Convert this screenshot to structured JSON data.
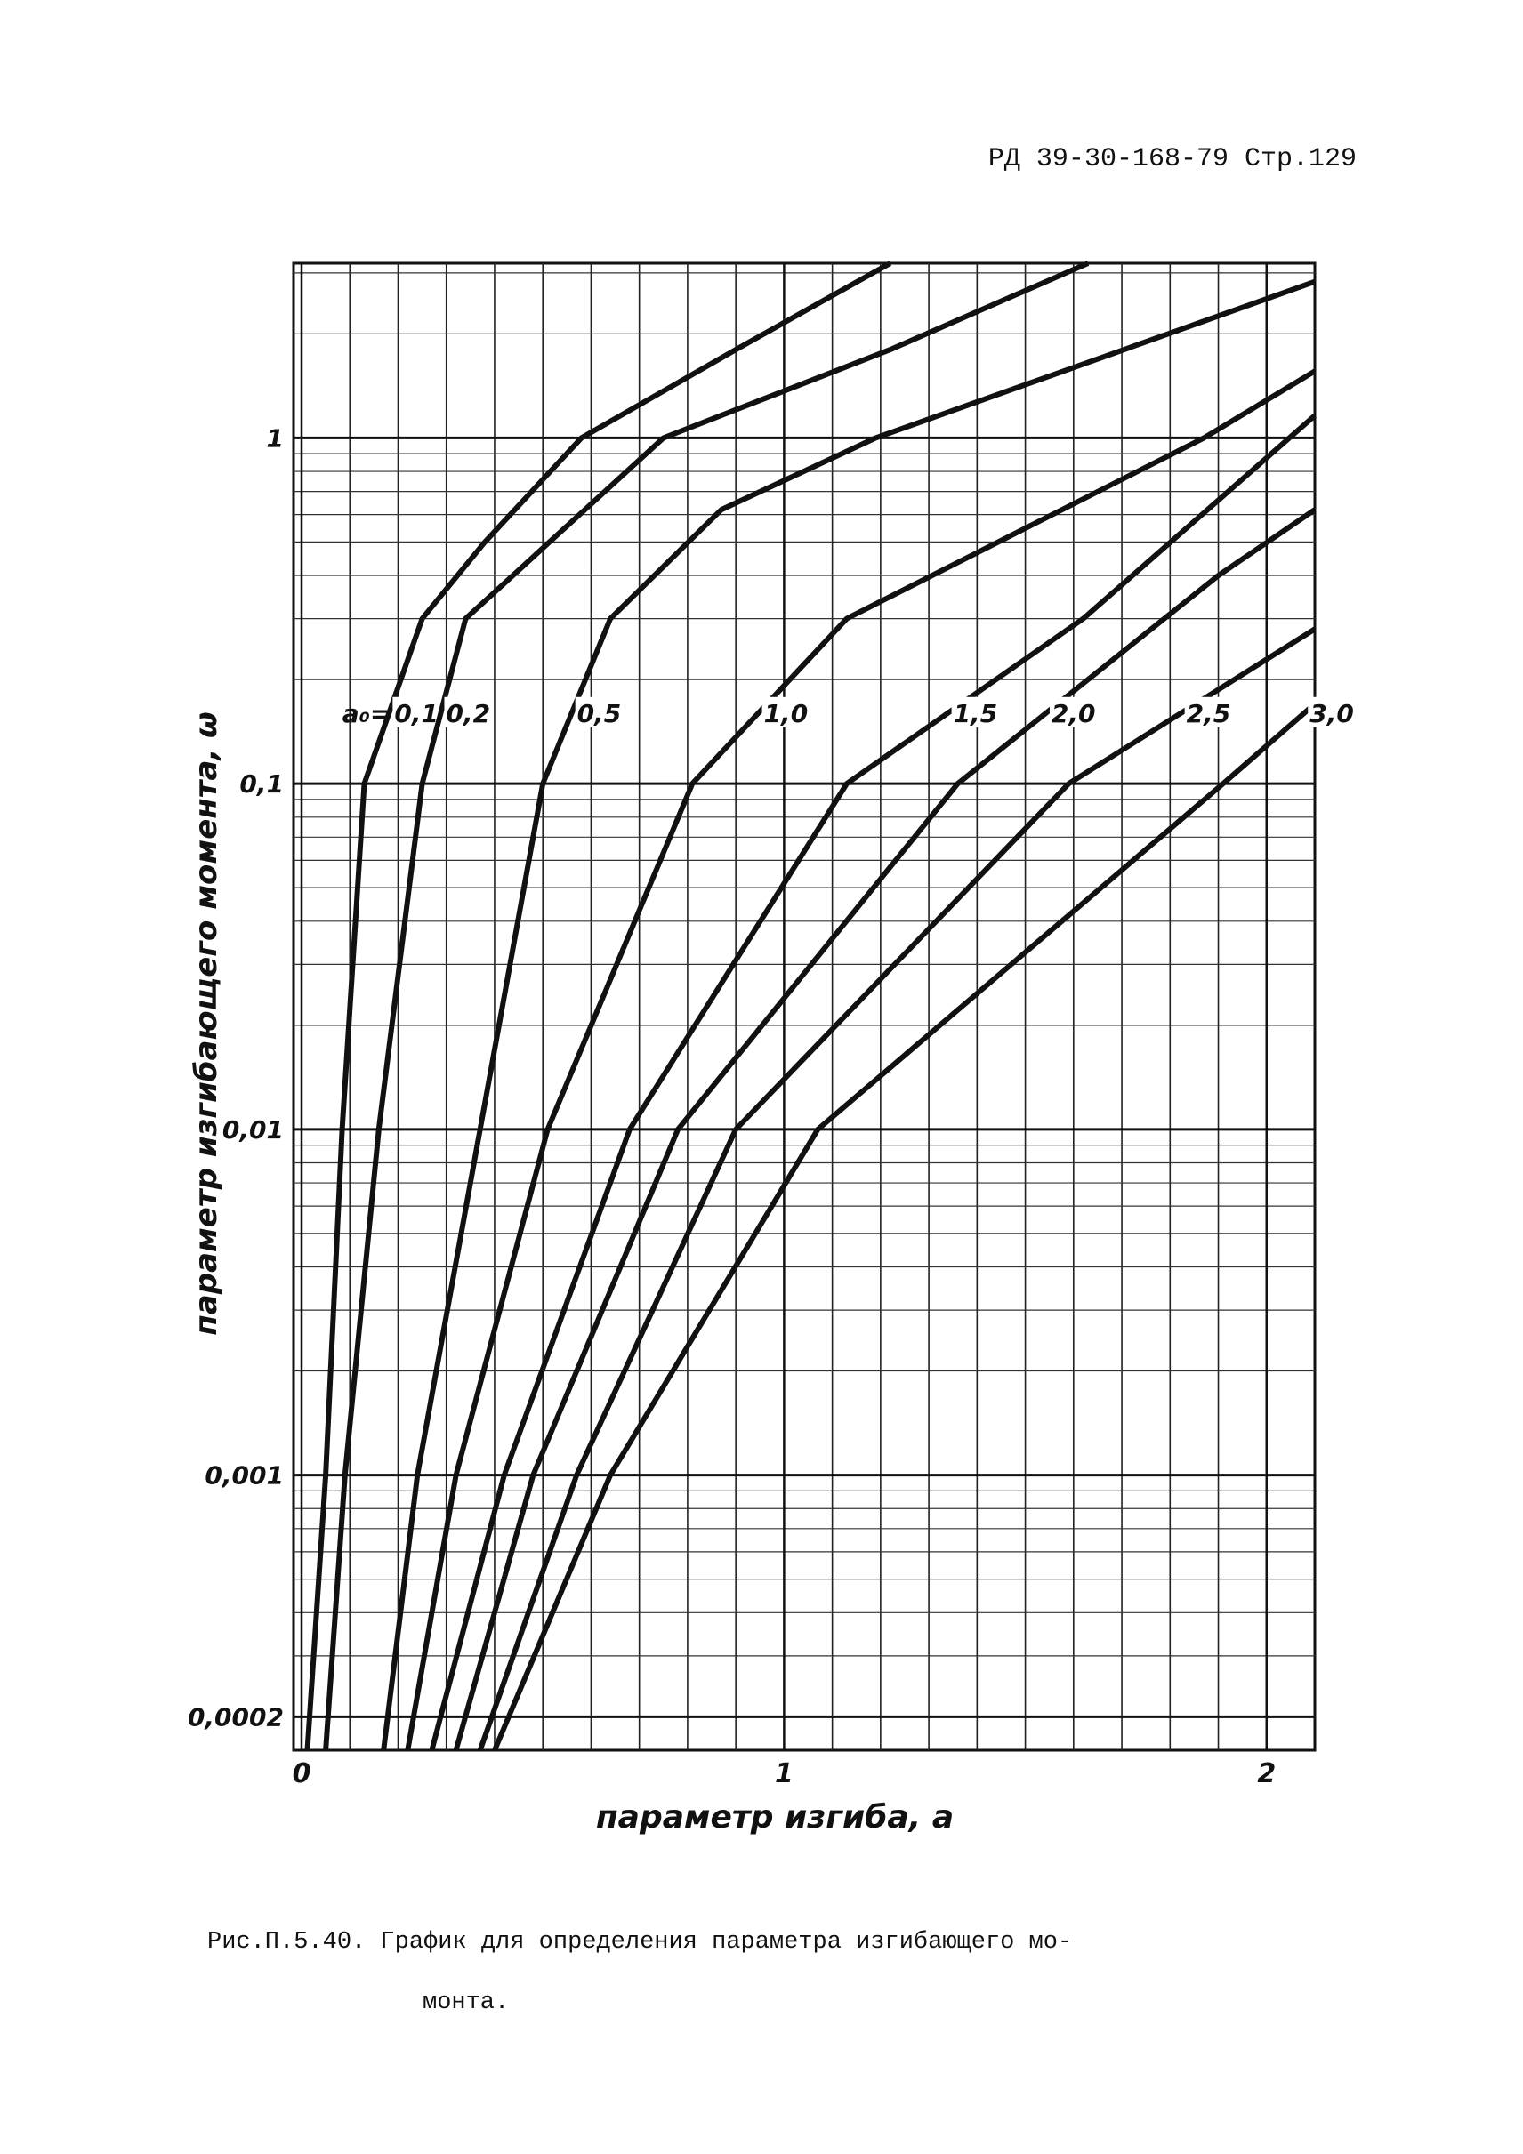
{
  "header": "РД 39-30-168-79  Стр.129",
  "chart_data": {
    "type": "line",
    "title_y": "параметр изгибающего момента, ω",
    "title_x": "параметр изгиба, a",
    "annotation": "a₀=",
    "log_y": true,
    "grid": true,
    "minor_grid": true,
    "xlim": [
      0,
      2.1
    ],
    "xticks": [
      0,
      1,
      2
    ],
    "ylim": [
      0.00016,
      3.2
    ],
    "yticks": [
      {
        "value": 0.0002,
        "label": "0,0002"
      },
      {
        "value": 0.001,
        "label": "0,001"
      },
      {
        "value": 0.01,
        "label": "0,01"
      },
      {
        "value": 0.1,
        "label": "0,1"
      },
      1
    ],
    "series": [
      {
        "name": "0,1",
        "color": "#111111",
        "x": [
          0.012,
          0.05,
          0.084,
          0.13,
          0.25,
          0.38,
          0.58,
          0.9,
          1.22
        ],
        "values": [
          0.00016,
          0.001,
          0.01,
          0.1,
          0.3,
          0.5,
          1,
          1.8,
          3.2
        ]
      },
      {
        "name": "0,2",
        "color": "#111111",
        "x": [
          0.05,
          0.09,
          0.16,
          0.25,
          0.34,
          0.75,
          1.22,
          1.63
        ],
        "values": [
          0.00016,
          0.001,
          0.01,
          0.1,
          0.3,
          1,
          1.8,
          3.2
        ]
      },
      {
        "name": "0,5",
        "color": "#111111",
        "x": [
          0.17,
          0.24,
          0.37,
          0.5,
          0.64,
          0.87,
          1.19,
          2.1
        ],
        "values": [
          0.00016,
          0.001,
          0.01,
          0.1,
          0.3,
          0.62,
          1,
          2.83
        ]
      },
      {
        "name": "1,0",
        "color": "#111111",
        "x": [
          0.22,
          0.32,
          0.51,
          0.81,
          1.13,
          1.87,
          2.1
        ],
        "values": [
          0.00016,
          0.001,
          0.01,
          0.1,
          0.3,
          1,
          1.56
        ]
      },
      {
        "name": "1,5",
        "color": "#111111",
        "x": [
          0.27,
          0.42,
          0.68,
          1.13,
          1.62,
          2.1
        ],
        "values": [
          0.00016,
          0.001,
          0.01,
          0.1,
          0.3,
          1.16
        ]
      },
      {
        "name": "2,0",
        "color": "#111111",
        "x": [
          0.32,
          0.48,
          0.78,
          1.36,
          1.9,
          2.1
        ],
        "values": [
          0.00016,
          0.001,
          0.01,
          0.1,
          0.4,
          0.62
        ]
      },
      {
        "name": "2,5",
        "color": "#111111",
        "x": [
          0.37,
          0.57,
          0.9,
          1.59,
          2.1
        ],
        "values": [
          0.00016,
          0.001,
          0.01,
          0.1,
          0.28
        ]
      },
      {
        "name": "3,0",
        "color": "#111111",
        "x": [
          0.4,
          0.64,
          1.07,
          1.91,
          2.1
        ],
        "values": [
          0.00016,
          0.001,
          0.01,
          0.1,
          0.17
        ]
      }
    ]
  },
  "caption": [
    "Рис.П.5.40. График для определения параметра изгибающего мо-",
    "монта."
  ]
}
